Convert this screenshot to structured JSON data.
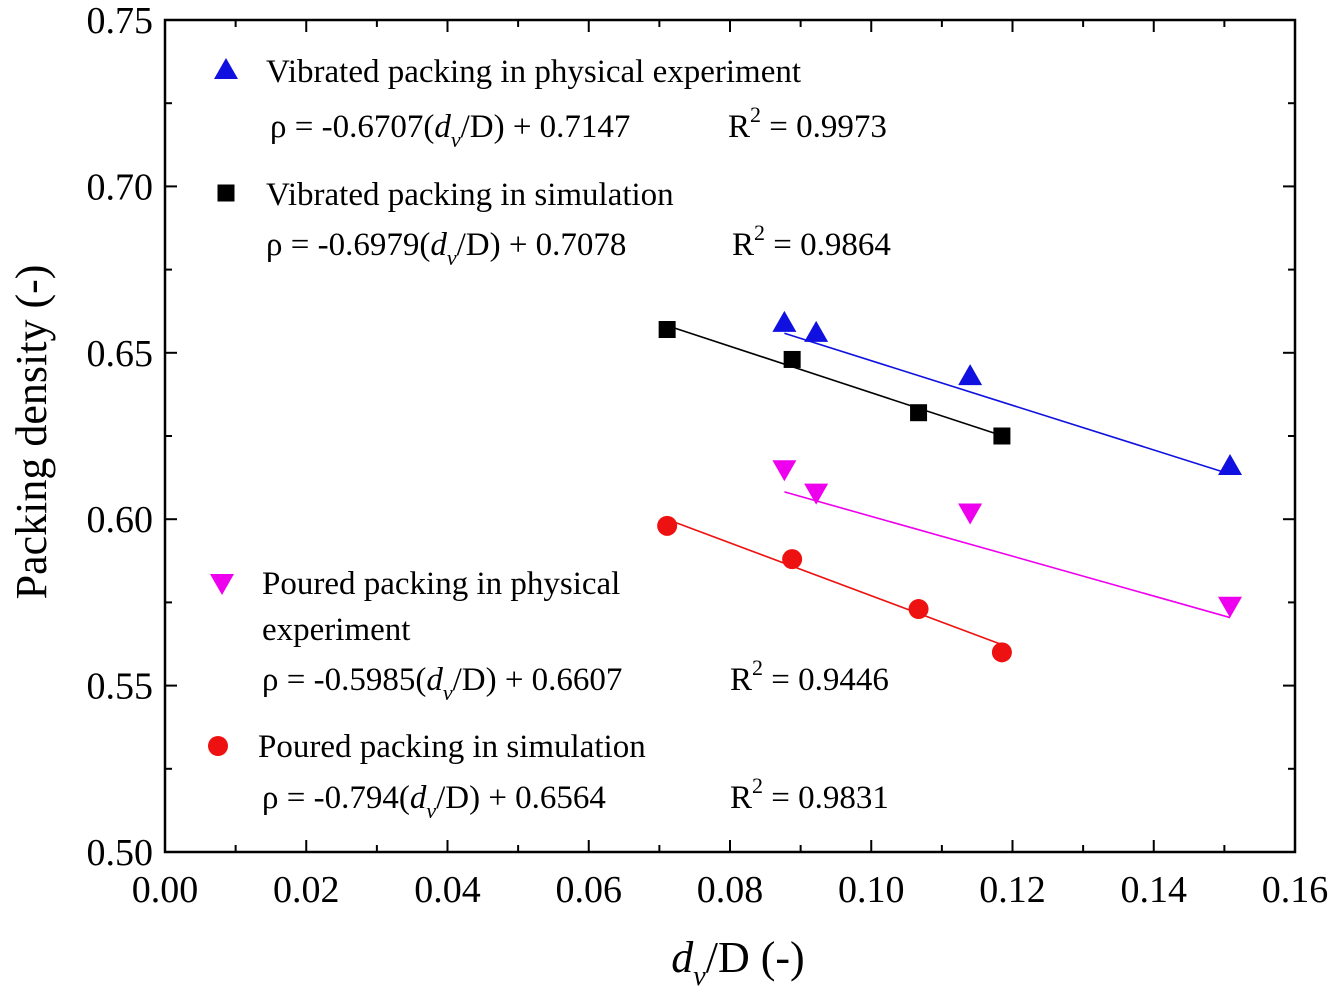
{
  "chart_data": {
    "type": "scatter",
    "title": "",
    "xlabel": {
      "base": "d",
      "sub": "v",
      "rest": "/D (-)"
    },
    "ylabel": "Packing density (-)",
    "xlim": [
      0.0,
      0.16
    ],
    "ylim": [
      0.5,
      0.75
    ],
    "x_ticks": [
      "0.00",
      "0.02",
      "0.04",
      "0.06",
      "0.08",
      "0.10",
      "0.12",
      "0.14",
      "0.16"
    ],
    "y_ticks": [
      "0.50",
      "0.55",
      "0.60",
      "0.65",
      "0.70",
      "0.75"
    ],
    "grid": false,
    "series": [
      {
        "name": "Vibrated packing in physical experiment",
        "name_lines": [
          "Vibrated packing in physical experiment"
        ],
        "marker": "triangle-up",
        "color": "#1010e0",
        "x": [
          0.0877,
          0.0922,
          0.114,
          0.1508
        ],
        "y": [
          0.659,
          0.656,
          0.643,
          0.616
        ],
        "fit": {
          "slope": -0.6707,
          "intercept": 0.7147,
          "x_range": [
            0.0877,
            0.1508
          ]
        },
        "equation": {
          "pre": "ρ = -0.6707(",
          "d": "d",
          "sub": "v",
          "post": "/D) + 0.7147",
          "r2_pre": "R",
          "r2_sup": "2",
          "r2_post": " = 0.9973"
        }
      },
      {
        "name": "Vibrated packing in simulation",
        "name_lines": [
          "Vibrated packing in simulation"
        ],
        "marker": "square",
        "color": "#000000",
        "x": [
          0.0711,
          0.0888,
          0.1067,
          0.1185
        ],
        "y": [
          0.657,
          0.648,
          0.632,
          0.625
        ],
        "fit": {
          "slope": -0.6979,
          "intercept": 0.7078,
          "x_range": [
            0.0711,
            0.1185
          ]
        },
        "equation": {
          "pre": "ρ = -0.6979(",
          "d": "d",
          "sub": "v",
          "post": "/D) + 0.7078",
          "r2_pre": "R",
          "r2_sup": "2",
          "r2_post": " = 0.9864"
        }
      },
      {
        "name": "Poured packing in physical experiment",
        "name_lines": [
          "Poured packing in physical",
          "experiment"
        ],
        "marker": "triangle-down",
        "color": "#ee00ee",
        "x": [
          0.0877,
          0.0922,
          0.114,
          0.1508
        ],
        "y": [
          0.615,
          0.608,
          0.602,
          0.574
        ],
        "fit": {
          "slope": -0.5985,
          "intercept": 0.6607,
          "x_range": [
            0.0877,
            0.1508
          ]
        },
        "equation": {
          "pre": "ρ = -0.5985(",
          "d": "d",
          "sub": "v",
          "post": "/D) + 0.6607",
          "r2_pre": "R",
          "r2_sup": "2",
          "r2_post": " = 0.9446"
        }
      },
      {
        "name": "Poured packing in simulation",
        "name_lines": [
          "Poured packing in simulation"
        ],
        "marker": "circle",
        "color": "#ee1111",
        "x": [
          0.0711,
          0.0888,
          0.1067,
          0.1185
        ],
        "y": [
          0.598,
          0.588,
          0.573,
          0.56
        ],
        "fit": {
          "slope": -0.794,
          "intercept": 0.6564,
          "x_range": [
            0.0711,
            0.1185
          ]
        },
        "equation": {
          "pre": "ρ = -0.794(",
          "d": "d",
          "sub": "v",
          "post": "/D) + 0.6564",
          "r2_pre": "R",
          "r2_sup": "2",
          "r2_post": " = 0.9831"
        }
      }
    ]
  }
}
